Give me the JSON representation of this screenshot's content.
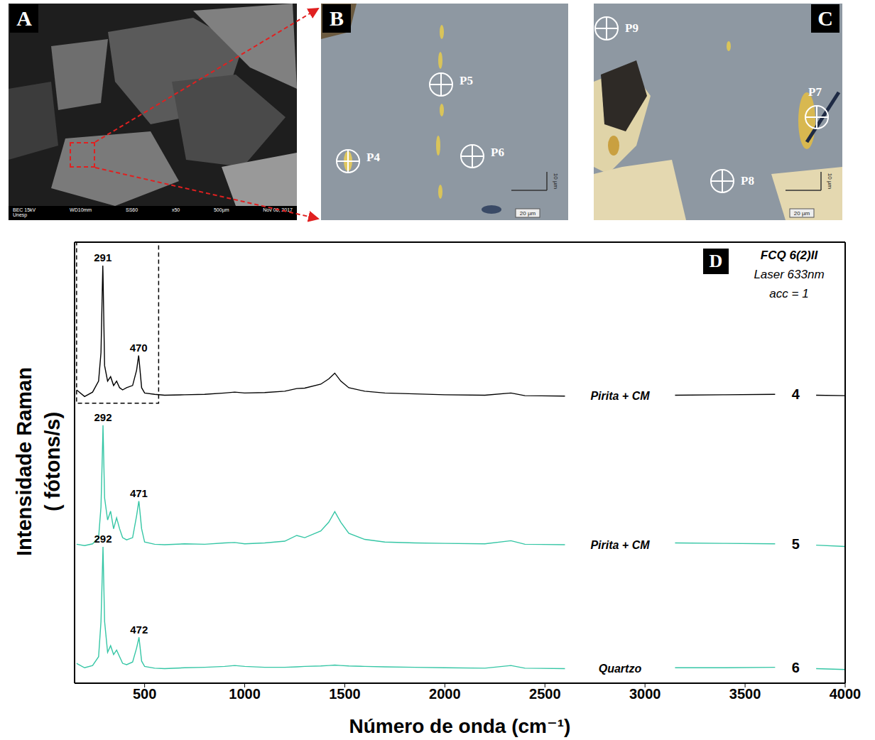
{
  "panels": [
    {
      "letter": "A",
      "caption": [
        "BEC 15kV",
        "WD10mm",
        "SS60",
        "x50",
        "500µm",
        "Nov 06, 2017"
      ],
      "institution": "Unesp"
    },
    {
      "letter": "B",
      "points": [
        "P5",
        "P4",
        "P6"
      ],
      "scale_labels": [
        "10 µm",
        "20 µm"
      ]
    },
    {
      "letter": "C",
      "points": [
        "P9",
        "P7",
        "P8"
      ],
      "scale_labels": [
        "10 µm",
        "20 µm"
      ]
    }
  ],
  "chart_data": {
    "type": "line",
    "panel_letter": "D",
    "annotations": [
      "FCQ 6(2)II",
      "Laser 633nm",
      "acc = 1"
    ],
    "xlabel": "Número de onda (cm⁻¹)",
    "ylabel": [
      "Intensidade Raman",
      "( fótons/s)"
    ],
    "x": [
      160,
      200,
      240,
      270,
      282,
      291,
      292,
      300,
      315,
      330,
      345,
      360,
      375,
      390,
      410,
      440,
      460,
      470,
      471,
      472,
      485,
      500,
      550,
      600,
      700,
      800,
      900,
      950,
      1000,
      1100,
      1200,
      1260,
      1300,
      1380,
      1420,
      1450,
      1480,
      1520,
      1600,
      1700,
      1850,
      2000,
      2200,
      2330,
      2400,
      2600,
      2800,
      3150,
      3400,
      3650,
      3750,
      3855,
      4000
    ],
    "xlim": [
      150,
      4000
    ],
    "xticks": [
      500,
      1000,
      1500,
      2000,
      2500,
      3000,
      3500,
      4000
    ],
    "ylim": [
      0,
      100
    ],
    "tick_labels": "x",
    "grid": false,
    "highlight_box": {
      "x": [
        160,
        570
      ],
      "y": [
        63.5,
        100
      ]
    },
    "series": [
      {
        "name": "Pirita + CM",
        "number": 4,
        "color": "#000000",
        "peaks": [
          291,
          470
        ],
        "values": [
          66.5,
          65.0,
          66.0,
          68.5,
          75,
          94.7,
          93,
          72,
          68.5,
          69.5,
          67.5,
          68.5,
          67,
          66.5,
          67,
          67.5,
          71,
          74.3,
          74,
          73.5,
          67,
          65.8,
          65.5,
          65.3,
          65.4,
          65.5,
          65.8,
          66.0,
          65.8,
          65.9,
          66.2,
          66.8,
          66.9,
          67.8,
          69,
          70.3,
          68.5,
          67,
          66.2,
          65.8,
          65.6,
          65.4,
          65.3,
          65.8,
          65.2,
          65.1,
          null,
          65.3,
          65.4,
          65.5,
          null,
          65.3,
          65.2
        ]
      },
      {
        "name": "Pirita + CM",
        "number": 5,
        "color": "#35c6a5",
        "peaks": [
          292,
          471
        ],
        "values": [
          31.5,
          31.2,
          31.6,
          33,
          40,
          56,
          58.5,
          42,
          37,
          39,
          35,
          37.5,
          35,
          33,
          32.5,
          33,
          38,
          41,
          41.3,
          41,
          35,
          32,
          31.5,
          31.4,
          31.6,
          31.5,
          31.8,
          31.9,
          31.6,
          31.8,
          32.2,
          33.5,
          33,
          34.5,
          36.5,
          38.9,
          36.5,
          34,
          32.6,
          32,
          31.8,
          31.7,
          31.6,
          32.3,
          31.5,
          31.4,
          null,
          31.8,
          31.7,
          31.6,
          null,
          31.3,
          31
        ]
      },
      {
        "name": "Quartzo",
        "number": 6,
        "color": "#35c6a5",
        "peaks": [
          292,
          472
        ],
        "values": [
          4.5,
          3.5,
          4,
          6,
          14,
          29,
          30.9,
          14,
          7,
          8.5,
          6.5,
          7.5,
          6,
          4.5,
          4.2,
          4.8,
          8,
          10,
          10.3,
          10.3,
          5,
          3.8,
          3.4,
          3.3,
          3.5,
          3.6,
          3.8,
          4.0,
          3.8,
          3.6,
          3.6,
          3.7,
          3.8,
          3.9,
          4,
          4.1,
          4,
          3.9,
          3.8,
          3.7,
          3.6,
          3.5,
          3.4,
          4.0,
          3.4,
          3.3,
          null,
          3.5,
          3.5,
          3.6,
          null,
          3.3,
          3.1
        ]
      }
    ]
  }
}
